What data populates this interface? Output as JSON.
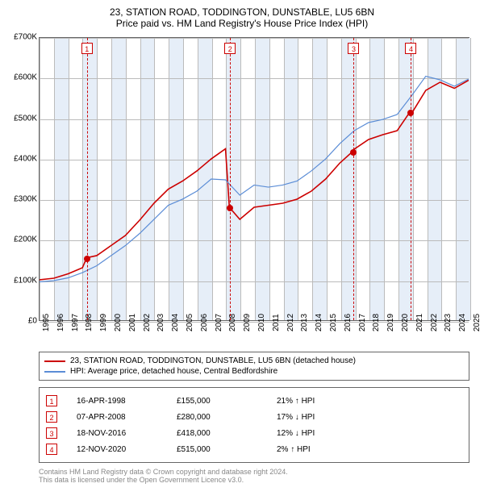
{
  "title_line1": "23, STATION ROAD, TODDINGTON, DUNSTABLE, LU5 6BN",
  "title_line2": "Price paid vs. HM Land Registry's House Price Index (HPI)",
  "chart": {
    "type": "line",
    "background_color": "#ffffff",
    "band_color": "#e6eef8",
    "grid_color": "#bbbbbb",
    "axis_color": "#666666",
    "x_min_year": 1995,
    "x_max_year": 2025,
    "y_min": 0,
    "y_max": 700000,
    "y_tick_step": 100000,
    "y_tick_labels": [
      "£0",
      "£100K",
      "£200K",
      "£300K",
      "£400K",
      "£500K",
      "£600K",
      "£700K"
    ],
    "x_tick_years": [
      1995,
      1996,
      1997,
      1998,
      1999,
      2000,
      2001,
      2002,
      2003,
      2004,
      2005,
      2006,
      2007,
      2008,
      2009,
      2010,
      2011,
      2012,
      2013,
      2014,
      2015,
      2016,
      2017,
      2018,
      2019,
      2020,
      2021,
      2022,
      2023,
      2024,
      2025
    ],
    "series": [
      {
        "name": "price_paid",
        "label": "23, STATION ROAD, TODDINGTON, DUNSTABLE, LU5 6BN (detached house)",
        "color": "#cc0000",
        "line_width": 1.6,
        "points": [
          [
            1995.0,
            100000
          ],
          [
            1996.0,
            104000
          ],
          [
            1997.0,
            115000
          ],
          [
            1998.0,
            130000
          ],
          [
            1998.3,
            155000
          ],
          [
            1999.0,
            160000
          ],
          [
            2000.0,
            185000
          ],
          [
            2001.0,
            210000
          ],
          [
            2002.0,
            248000
          ],
          [
            2003.0,
            290000
          ],
          [
            2004.0,
            325000
          ],
          [
            2005.0,
            345000
          ],
          [
            2006.0,
            370000
          ],
          [
            2007.0,
            400000
          ],
          [
            2008.0,
            425000
          ],
          [
            2008.27,
            280000
          ],
          [
            2009.0,
            250000
          ],
          [
            2010.0,
            280000
          ],
          [
            2011.0,
            285000
          ],
          [
            2012.0,
            290000
          ],
          [
            2013.0,
            300000
          ],
          [
            2014.0,
            320000
          ],
          [
            2015.0,
            350000
          ],
          [
            2016.0,
            390000
          ],
          [
            2016.88,
            418000
          ],
          [
            2017.0,
            424000
          ],
          [
            2018.0,
            448000
          ],
          [
            2019.0,
            460000
          ],
          [
            2020.0,
            470000
          ],
          [
            2020.87,
            515000
          ],
          [
            2021.0,
            512000
          ],
          [
            2022.0,
            570000
          ],
          [
            2023.0,
            590000
          ],
          [
            2024.0,
            575000
          ],
          [
            2025.0,
            595000
          ]
        ]
      },
      {
        "name": "hpi",
        "label": "HPI: Average price, detached house, Central Bedfordshire",
        "color": "#5b8dd6",
        "line_width": 1.2,
        "points": [
          [
            1995.0,
            95000
          ],
          [
            1996.0,
            98000
          ],
          [
            1997.0,
            105000
          ],
          [
            1998.0,
            118000
          ],
          [
            1999.0,
            135000
          ],
          [
            2000.0,
            160000
          ],
          [
            2001.0,
            185000
          ],
          [
            2002.0,
            215000
          ],
          [
            2003.0,
            250000
          ],
          [
            2004.0,
            285000
          ],
          [
            2005.0,
            300000
          ],
          [
            2006.0,
            320000
          ],
          [
            2007.0,
            350000
          ],
          [
            2008.0,
            348000
          ],
          [
            2009.0,
            310000
          ],
          [
            2010.0,
            335000
          ],
          [
            2011.0,
            330000
          ],
          [
            2012.0,
            335000
          ],
          [
            2013.0,
            345000
          ],
          [
            2014.0,
            370000
          ],
          [
            2015.0,
            400000
          ],
          [
            2016.0,
            438000
          ],
          [
            2017.0,
            470000
          ],
          [
            2018.0,
            490000
          ],
          [
            2019.0,
            498000
          ],
          [
            2020.0,
            510000
          ],
          [
            2021.0,
            556000
          ],
          [
            2022.0,
            605000
          ],
          [
            2023.0,
            596000
          ],
          [
            2024.0,
            580000
          ],
          [
            2025.0,
            598000
          ]
        ]
      }
    ],
    "events": [
      {
        "n": "1",
        "year": 1998.3,
        "price": 155000,
        "date": "16-APR-1998",
        "price_label": "£155,000",
        "delta": "21% ↑ HPI"
      },
      {
        "n": "2",
        "year": 2008.27,
        "price": 280000,
        "date": "07-APR-2008",
        "price_label": "£280,000",
        "delta": "17% ↓ HPI"
      },
      {
        "n": "3",
        "year": 2016.88,
        "price": 418000,
        "date": "18-NOV-2016",
        "price_label": "£418,000",
        "delta": "12% ↓ HPI"
      },
      {
        "n": "4",
        "year": 2020.87,
        "price": 515000,
        "date": "12-NOV-2020",
        "price_label": "£515,000",
        "delta": "2% ↑ HPI"
      }
    ]
  },
  "legend": {
    "label_series1": "23, STATION ROAD, TODDINGTON, DUNSTABLE, LU5 6BN (detached house)",
    "label_series2": "HPI: Average price, detached house, Central Bedfordshire"
  },
  "footer_line1": "Contains HM Land Registry data © Crown copyright and database right 2024.",
  "footer_line2": "This data is licensed under the Open Government Licence v3.0."
}
